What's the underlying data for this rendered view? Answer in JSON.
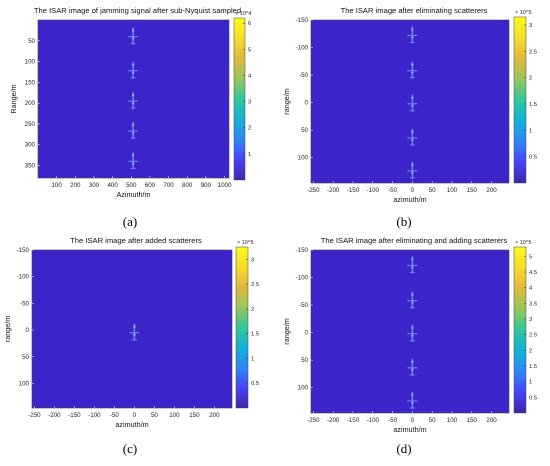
{
  "colors": {
    "background": "#3b24c9",
    "colormap": [
      "#3e26a8",
      "#4743f8",
      "#2e87f7",
      "#12b1d6",
      "#31c79c",
      "#97c65c",
      "#e0b83c",
      "#f8dc2c",
      "#f9fb14"
    ]
  },
  "chart_data": [
    {
      "type": "heatmap",
      "title": "The ISAR image of jamming signal after sub-Nyquist sampled",
      "xlabel": "Azimuth/m",
      "ylabel": "Range/m",
      "xlim": [
        0,
        1024
      ],
      "ylim": [
        0,
        380
      ],
      "y_reversed": true,
      "xticks": [
        100,
        200,
        300,
        400,
        500,
        600,
        700,
        800,
        900,
        1000
      ],
      "yticks": [
        50,
        100,
        150,
        200,
        250,
        300,
        350
      ],
      "colorbar": {
        "min": 0,
        "max": 6.2,
        "multiplier": "× 10^4",
        "ticks": [
          1,
          2,
          3,
          4,
          5,
          6
        ]
      },
      "scatterers": [
        {
          "x": 510,
          "y": 40,
          "intensity": 0.35
        },
        {
          "x": 510,
          "y": 122,
          "intensity": 0.35
        },
        {
          "x": 510,
          "y": 195,
          "intensity": 0.35
        },
        {
          "x": 510,
          "y": 267,
          "intensity": 0.35
        },
        {
          "x": 510,
          "y": 340,
          "intensity": 0.35
        }
      ],
      "caption": "(a)"
    },
    {
      "type": "heatmap",
      "title": "The ISAR image after eliminating scatterers",
      "xlabel": "azimuth/m",
      "ylabel": "range/m",
      "xlim": [
        -256,
        244
      ],
      "ylim": [
        -150,
        146
      ],
      "y_reversed": true,
      "xticks": [
        -250,
        -200,
        -150,
        -100,
        -50,
        0,
        50,
        100,
        150,
        200
      ],
      "yticks": [
        -150,
        -100,
        -50,
        0,
        50,
        100
      ],
      "colorbar": {
        "min": 0,
        "max": 3.15,
        "multiplier": "× 10^5",
        "ticks": [
          0.5,
          1,
          1.5,
          2,
          2.5,
          3
        ]
      },
      "scatterers": [
        {
          "x": 0,
          "y": -122,
          "intensity": 0.35
        },
        {
          "x": 0,
          "y": -58,
          "intensity": 0.35
        },
        {
          "x": 0,
          "y": 2,
          "intensity": 0.3
        },
        {
          "x": 0,
          "y": 64,
          "intensity": 0.35
        },
        {
          "x": 0,
          "y": 124,
          "intensity": 0.35
        }
      ],
      "caption": "(b)"
    },
    {
      "type": "heatmap",
      "title": "The ISAR image after added scatterers",
      "xlabel": "azimuth/m",
      "ylabel": "range/m",
      "xlim": [
        -256,
        244
      ],
      "ylim": [
        -150,
        146
      ],
      "y_reversed": true,
      "xticks": [
        -250,
        -200,
        -150,
        -100,
        -50,
        0,
        50,
        100,
        150,
        200
      ],
      "yticks": [
        -150,
        -100,
        -50,
        0,
        50,
        100
      ],
      "colorbar": {
        "min": 0,
        "max": 3.25,
        "multiplier": "× 10^5",
        "ticks": [
          0.5,
          1,
          1.5,
          2,
          2.5,
          3
        ]
      },
      "scatterers": [
        {
          "x": 0,
          "y": 5,
          "intensity": 0.4
        }
      ],
      "caption": "(c)"
    },
    {
      "type": "heatmap",
      "title": "The ISAR image after eliminating and adding scatterers",
      "xlabel": "azimuth/m",
      "ylabel": "range/m",
      "xlim": [
        -256,
        244
      ],
      "ylim": [
        -150,
        146
      ],
      "y_reversed": true,
      "xticks": [
        -250,
        -200,
        -150,
        -100,
        -50,
        0,
        50,
        100,
        150,
        200
      ],
      "yticks": [
        -150,
        -100,
        -50,
        0,
        50,
        100
      ],
      "colorbar": {
        "min": 0,
        "max": 5.3,
        "multiplier": "× 10^5",
        "ticks": [
          0.5,
          1,
          1.5,
          2,
          2.5,
          3,
          3.5,
          4,
          4.5,
          5
        ]
      },
      "scatterers": [
        {
          "x": 0,
          "y": -122,
          "intensity": 0.35
        },
        {
          "x": 0,
          "y": -58,
          "intensity": 0.35
        },
        {
          "x": 0,
          "y": 2,
          "intensity": 0.35
        },
        {
          "x": 0,
          "y": 64,
          "intensity": 0.35
        },
        {
          "x": 0,
          "y": 124,
          "intensity": 0.35
        }
      ],
      "caption": "(d)"
    }
  ]
}
